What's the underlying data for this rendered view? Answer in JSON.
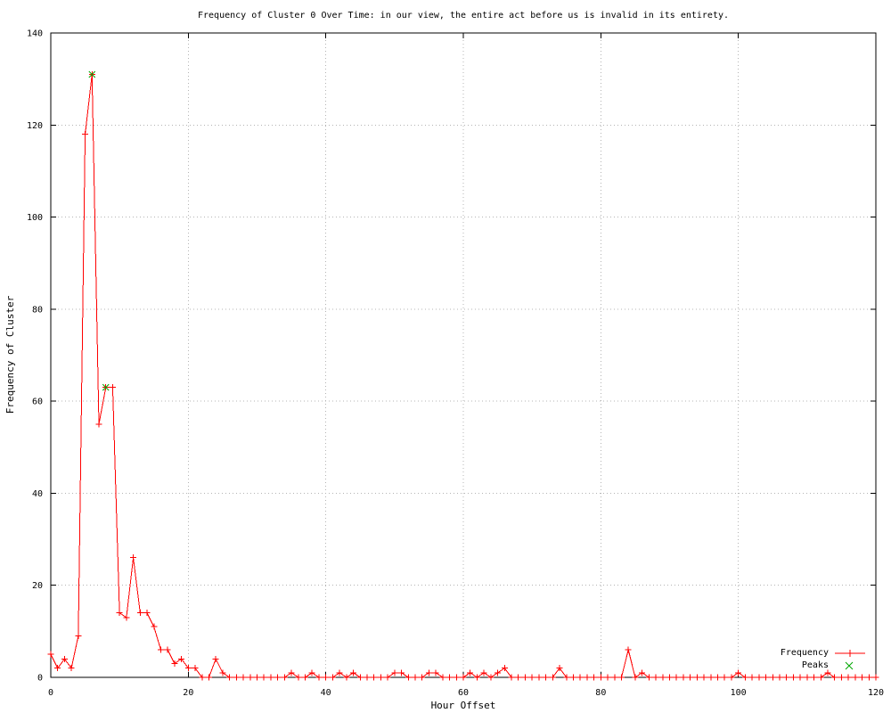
{
  "chart_data": {
    "type": "line",
    "title": "Frequency of Cluster 0 Over Time: in our view, the entire act before us is invalid in its entirety.",
    "xlabel": "Hour Offset",
    "ylabel": "Frequency of Cluster",
    "xlim": [
      0,
      120
    ],
    "ylim": [
      0,
      140
    ],
    "x_ticks": [
      0,
      20,
      40,
      60,
      80,
      100,
      120
    ],
    "y_ticks": [
      0,
      20,
      40,
      60,
      80,
      100,
      120,
      140
    ],
    "grid": true,
    "grid_style": "dotted",
    "legend_position": "bottom-right",
    "background": "#ffffff",
    "border_color": "#000000",
    "grid_color": "#b4b4b4",
    "series": [
      {
        "name": "Frequency",
        "color": "#ff0000",
        "marker": "plus",
        "x_start": 0,
        "x_step": 1,
        "values": [
          5,
          2,
          4,
          2,
          9,
          118,
          131,
          55,
          63,
          63,
          14,
          13,
          26,
          14,
          14,
          11,
          6,
          6,
          3,
          4,
          2,
          2,
          0,
          0,
          4,
          1,
          0,
          0,
          0,
          0,
          0,
          0,
          0,
          0,
          0,
          1,
          0,
          0,
          1,
          0,
          0,
          0,
          1,
          0,
          1,
          0,
          0,
          0,
          0,
          0,
          1,
          1,
          0,
          0,
          0,
          1,
          1,
          0,
          0,
          0,
          0,
          1,
          0,
          1,
          0,
          1,
          2,
          0,
          0,
          0,
          0,
          0,
          0,
          0,
          2,
          0,
          0,
          0,
          0,
          0,
          0,
          0,
          0,
          0,
          6,
          0,
          1,
          0,
          0,
          0,
          0,
          0,
          0,
          0,
          0,
          0,
          0,
          0,
          0,
          0,
          1,
          0,
          0,
          0,
          0,
          0,
          0,
          0,
          0,
          0,
          0,
          0,
          0,
          1,
          0,
          0,
          0,
          0,
          0,
          0,
          0
        ]
      },
      {
        "name": "Peaks",
        "color": "#00a600",
        "marker": "x",
        "points": [
          [
            6,
            131
          ],
          [
            8,
            63
          ]
        ]
      }
    ]
  }
}
